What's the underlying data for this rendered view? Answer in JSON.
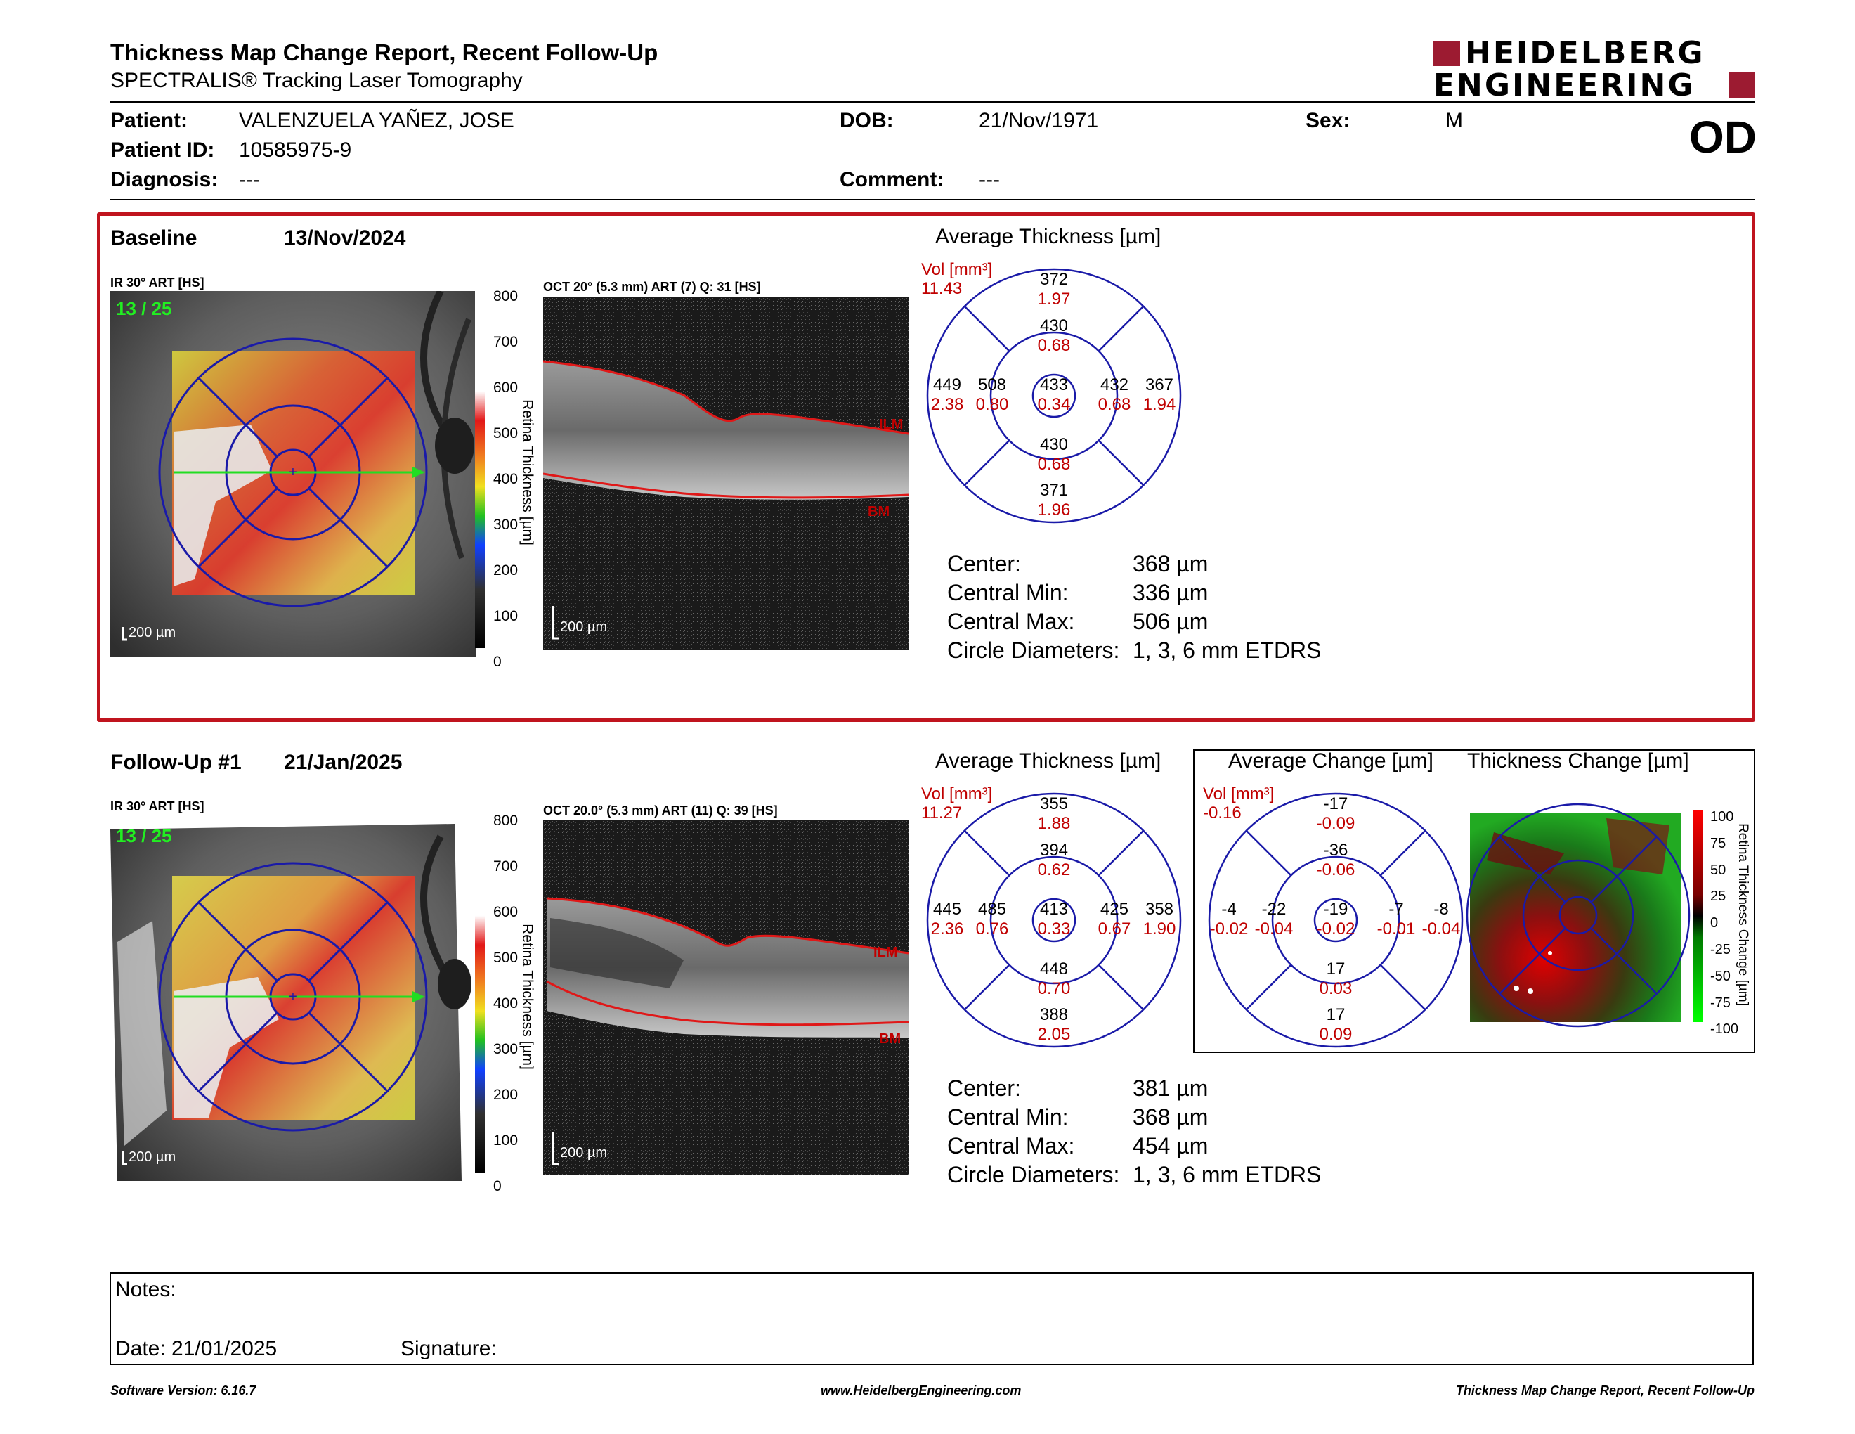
{
  "report": {
    "title": "Thickness Map Change Report, Recent Follow-Up",
    "subtitle": "SPECTRALIS® Tracking Laser Tomography",
    "logo_line1": "HEIDELBERG",
    "logo_line2": "ENGINEERING",
    "eye": "OD"
  },
  "patient": {
    "patient_label": "Patient:",
    "patient_value": "VALENZUELA YAÑEZ, JOSE",
    "id_label": "Patient ID:",
    "id_value": "10585975-9",
    "diagnosis_label": "Diagnosis:",
    "diagnosis_value": "---",
    "dob_label": "DOB:",
    "dob_value": "21/Nov/1971",
    "comment_label": "Comment:",
    "comment_value": "---",
    "sex_label": "Sex:",
    "sex_value": "M"
  },
  "baseline": {
    "label": "Baseline",
    "date": "13/Nov/2024",
    "ir_label": "IR 30° ART [HS]",
    "ir_counter": "13 / 25",
    "ir_scale": "200 µm",
    "oct_label": "OCT 20° (5.3 mm) ART (7) Q: 31 [HS]",
    "oct_scale": "200 µm",
    "layer_top": "ILM",
    "layer_bottom": "BM",
    "avg_title": "Average Thickness [µm]",
    "vol_label": "Vol [mm³]",
    "vol_total": "11.43",
    "grid": {
      "center": [
        "433",
        "0.34"
      ],
      "inner_sup": [
        "430",
        "0.68"
      ],
      "inner_inf": [
        "430",
        "0.68"
      ],
      "inner_temp": [
        "508",
        "0.80"
      ],
      "inner_nas": [
        "432",
        "0.68"
      ],
      "outer_sup": [
        "372",
        "1.97"
      ],
      "outer_inf": [
        "371",
        "1.96"
      ],
      "outer_temp": [
        "449",
        "2.38"
      ],
      "outer_nas": [
        "367",
        "1.94"
      ]
    },
    "stats": {
      "center_label": "Center:",
      "center_value": "368 µm",
      "min_label": "Central Min:",
      "min_value": "336 µm",
      "max_label": "Central Max:",
      "max_value": "506 µm",
      "diam_label": "Circle Diameters:",
      "diam_value": "1, 3, 6 mm ETDRS"
    }
  },
  "followup": {
    "label": "Follow-Up #1",
    "date": "21/Jan/2025",
    "ir_label": "IR 30° ART [HS]",
    "ir_counter": "13 / 25",
    "ir_scale": "200 µm",
    "oct_label": "OCT 20.0° (5.3 mm) ART (11) Q: 39 [HS]",
    "oct_scale": "200 µm",
    "layer_top": "ILM",
    "layer_bottom": "BM",
    "avg_title": "Average Thickness [µm]",
    "vol_label": "Vol [mm³]",
    "vol_total": "11.27",
    "grid": {
      "center": [
        "413",
        "0.33"
      ],
      "inner_sup": [
        "394",
        "0.62"
      ],
      "inner_inf": [
        "448",
        "0.70"
      ],
      "inner_temp": [
        "485",
        "0.76"
      ],
      "inner_nas": [
        "425",
        "0.67"
      ],
      "outer_sup": [
        "355",
        "1.88"
      ],
      "outer_inf": [
        "388",
        "2.05"
      ],
      "outer_temp": [
        "445",
        "2.36"
      ],
      "outer_nas": [
        "358",
        "1.90"
      ]
    },
    "stats": {
      "center_label": "Center:",
      "center_value": "381 µm",
      "min_label": "Central Min:",
      "min_value": "368 µm",
      "max_label": "Central Max:",
      "max_value": "454 µm",
      "diam_label": "Circle Diameters:",
      "diam_value": "1, 3, 6 mm ETDRS"
    },
    "change_title": "Average Change [µm]",
    "change_map_title": "Thickness Change [µm]",
    "change_vol_label": "Vol [mm³]",
    "change_vol_total": "-0.16",
    "change_grid": {
      "center": [
        "-19",
        "-0.02"
      ],
      "inner_sup": [
        "-36",
        "-0.06"
      ],
      "inner_inf": [
        "17",
        "0.03"
      ],
      "inner_temp": [
        "-22",
        "-0.04"
      ],
      "inner_nas": [
        "-7",
        "-0.01"
      ],
      "outer_sup": [
        "-17",
        "-0.09"
      ],
      "outer_inf": [
        "17",
        "0.09"
      ],
      "outer_temp": [
        "-4",
        "-0.02"
      ],
      "outer_nas": [
        "-8",
        "-0.04"
      ]
    }
  },
  "scales": {
    "thickness_ticks": [
      "800",
      "700",
      "600",
      "500",
      "400",
      "300",
      "200",
      "100",
      "0"
    ],
    "thickness_label": "Retina Thickness [µm]",
    "change_ticks": [
      "100",
      "75",
      "50",
      "25",
      "0",
      "-25",
      "-50",
      "-75",
      "-100"
    ],
    "change_label": "Retina Thickness Change [µm]"
  },
  "notes": {
    "notes_label": "Notes:",
    "date_label": "Date: 21/01/2025",
    "signature_label": "Signature:"
  },
  "footer": {
    "version": "Software Version: 6.16.7",
    "website": "www.HeidelbergEngineering.com",
    "report_name": "Thickness Map Change Report, Recent Follow-Up"
  },
  "colors": {
    "accent_red": "#c00000",
    "grid_blue": "#1a1aa8",
    "logo_red": "#9c1b31",
    "frame_red": "#c0141e"
  }
}
